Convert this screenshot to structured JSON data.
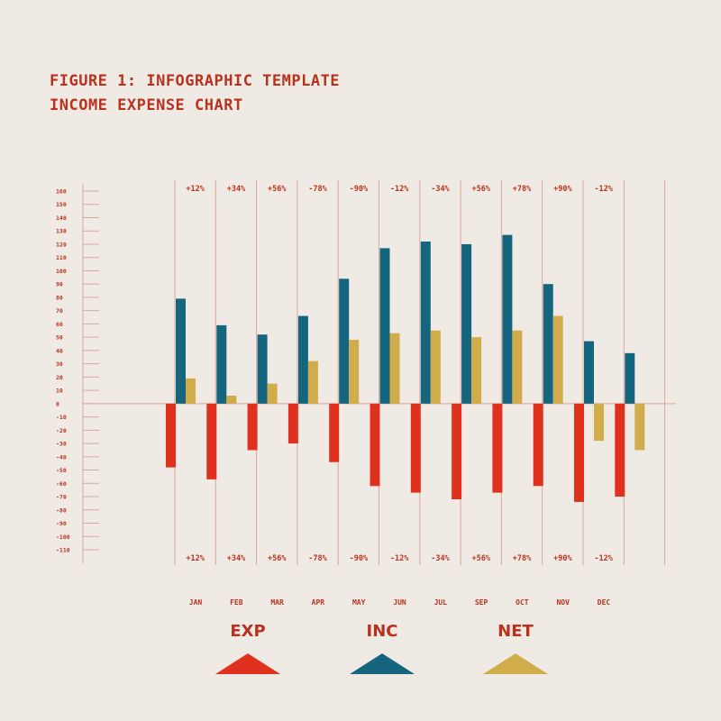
{
  "title_line1": "FIGURE 1: INFOGRAPHIC TEMPLATE",
  "title_line2": "INCOME EXPENSE CHART",
  "colors": {
    "background": "#efebe4",
    "title": "#b8321e",
    "grid": "#d9a79b",
    "exp": "#e0311f",
    "inc": "#16657e",
    "net": "#d1ac4a"
  },
  "legend": [
    {
      "label": "EXP",
      "icon": "triangle-icon",
      "color": "#e0311f"
    },
    {
      "label": "INC",
      "icon": "triangle-icon",
      "color": "#16657e"
    },
    {
      "label": "NET",
      "icon": "triangle-icon",
      "color": "#d1ac4a"
    }
  ],
  "chart_data": {
    "type": "bar",
    "categories": [
      "JAN",
      "FEB",
      "MAR",
      "APR",
      "MAY",
      "JUN",
      "JUL",
      "SEP",
      "OCT",
      "NOV",
      "DEC",
      ""
    ],
    "series": [
      {
        "key": "inc",
        "values": [
          79,
          59,
          52,
          66,
          94,
          117,
          122,
          120,
          127,
          90,
          47,
          38
        ]
      },
      {
        "key": "net",
        "values": [
          19,
          6,
          15,
          32,
          48,
          53,
          55,
          50,
          55,
          66,
          -28,
          -35
        ]
      },
      {
        "key": "exp",
        "values": [
          -48,
          -57,
          -35,
          -30,
          -44,
          -62,
          -67,
          -72,
          -67,
          -62,
          -74,
          -70
        ]
      }
    ],
    "percent_labels": [
      "+12%",
      "+34%",
      "+56%",
      "-78%",
      "-90%",
      "-12%",
      "-34%",
      "+56%",
      "+78%",
      "+90%",
      "-12%"
    ],
    "y_ticks": [
      160,
      150,
      140,
      130,
      120,
      110,
      100,
      90,
      80,
      70,
      60,
      50,
      40,
      30,
      20,
      10,
      0,
      -10,
      -20,
      -30,
      -40,
      -50,
      -60,
      -70,
      -80,
      -90,
      -100,
      -110
    ],
    "ylim": [
      -110,
      160
    ],
    "grid": true,
    "legend_position": "bottom"
  }
}
